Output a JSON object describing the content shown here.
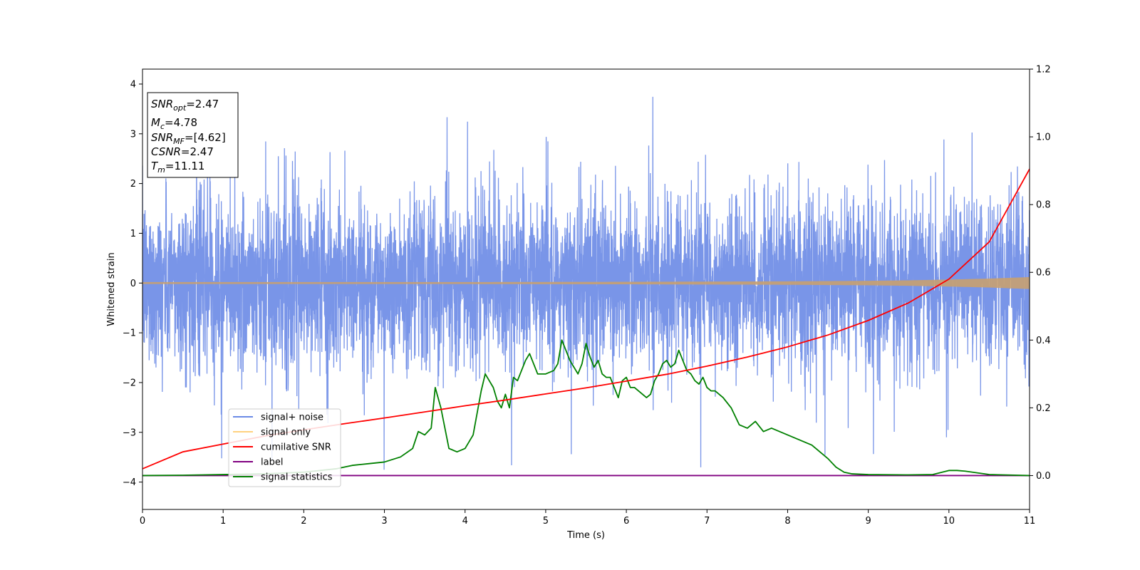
{
  "chart_data": {
    "type": "line",
    "xlabel": "Time (s)",
    "ylabel": "Whitened strain",
    "xlim": [
      0,
      11
    ],
    "ylim": [
      -4.55,
      4.3
    ],
    "y2lim": [
      -0.1,
      1.2
    ],
    "x_ticks": [
      "0",
      "1",
      "2",
      "3",
      "4",
      "5",
      "6",
      "7",
      "8",
      "9",
      "10",
      "11"
    ],
    "y_ticks": [
      "−4",
      "−3",
      "−2",
      "−1",
      "0",
      "1",
      "2",
      "3",
      "4"
    ],
    "y2_ticks": [
      "0.0",
      "0.2",
      "0.4",
      "0.6",
      "0.8",
      "1.0",
      "1.2"
    ],
    "legend": {
      "position": "lower-left",
      "entries": [
        {
          "label": "signal+ noise",
          "color": "#6a8ae6"
        },
        {
          "label": "signal only",
          "color": "#ffd27f"
        },
        {
          "label": "cumilative SNR",
          "color": "#ff0000"
        },
        {
          "label": "label",
          "color": "#800080"
        },
        {
          "label": "signal statistics",
          "color": "#008000"
        }
      ]
    },
    "stats_box": {
      "position": "upper-left",
      "snr_opt": {
        "sym": "SNR",
        "sub": "opt",
        "value": "=2.47"
      },
      "mc": {
        "sym": "M",
        "sub": "c",
        "value": "=4.78"
      },
      "snr_mf": {
        "sym": "SNR",
        "sub": "MF",
        "value": "=[4.62]"
      },
      "csnr": {
        "sym": "CSNR",
        "value": "=2.47"
      },
      "tm": {
        "sym": "T",
        "sub": "m",
        "value": "=11.11"
      }
    },
    "series": [
      {
        "name": "signal+ noise",
        "axis": "left",
        "color": "#6a8ae6",
        "style": "dense noise, approx. ±1.5 typical, spikes to ±4",
        "amplitude_typical": 1.5,
        "amplitude_max": 4.1
      },
      {
        "name": "signal only",
        "axis": "left",
        "color": "#c8a070",
        "style": "chirp envelope growing toward t=11",
        "envelope_x": [
          0,
          2,
          4,
          6,
          7,
          8,
          9,
          9.5,
          10,
          10.5,
          11
        ],
        "envelope_y": [
          0.02,
          0.02,
          0.02,
          0.025,
          0.03,
          0.035,
          0.045,
          0.055,
          0.07,
          0.09,
          0.12
        ]
      },
      {
        "name": "cumilative SNR",
        "axis": "right",
        "color": "#ff0000",
        "x": [
          0,
          0.5,
          1,
          1.5,
          2,
          2.5,
          3,
          3.5,
          4,
          4.5,
          5,
          5.5,
          6,
          6.5,
          7,
          7.5,
          8,
          8.5,
          9,
          9.5,
          10,
          10.5,
          11
        ],
        "y": [
          0.02,
          0.07,
          0.093,
          0.116,
          0.135,
          0.153,
          0.17,
          0.188,
          0.206,
          0.223,
          0.241,
          0.259,
          0.279,
          0.299,
          0.323,
          0.35,
          0.38,
          0.415,
          0.458,
          0.51,
          0.58,
          0.69,
          0.905
        ]
      },
      {
        "name": "label",
        "axis": "right",
        "color": "#800080",
        "x": [
          0,
          11
        ],
        "y": [
          0,
          0
        ]
      },
      {
        "name": "signal statistics",
        "axis": "right",
        "color": "#008000",
        "x": [
          0,
          0.5,
          1,
          1.5,
          2,
          2.4,
          2.6,
          2.8,
          3,
          3.2,
          3.35,
          3.42,
          3.5,
          3.58,
          3.63,
          3.7,
          3.8,
          3.9,
          4.0,
          4.1,
          4.2,
          4.25,
          4.3,
          4.35,
          4.4,
          4.45,
          4.5,
          4.55,
          4.6,
          4.65,
          4.7,
          4.75,
          4.8,
          4.85,
          4.9,
          5.0,
          5.1,
          5.15,
          5.2,
          5.25,
          5.3,
          5.35,
          5.4,
          5.45,
          5.5,
          5.55,
          5.6,
          5.65,
          5.7,
          5.75,
          5.8,
          5.85,
          5.9,
          5.95,
          6.0,
          6.05,
          6.1,
          6.15,
          6.2,
          6.25,
          6.3,
          6.35,
          6.4,
          6.45,
          6.5,
          6.55,
          6.6,
          6.65,
          6.7,
          6.75,
          6.8,
          6.85,
          6.9,
          6.95,
          7.0,
          7.05,
          7.1,
          7.15,
          7.2,
          7.3,
          7.4,
          7.5,
          7.6,
          7.7,
          7.8,
          7.9,
          8.0,
          8.1,
          8.2,
          8.3,
          8.4,
          8.5,
          8.6,
          8.7,
          8.8,
          9.0,
          9.5,
          9.8,
          10.0,
          10.1,
          10.2,
          10.5,
          11.0
        ],
        "y": [
          0.0,
          0.001,
          0.003,
          0.005,
          0.01,
          0.02,
          0.03,
          0.035,
          0.04,
          0.055,
          0.08,
          0.13,
          0.12,
          0.14,
          0.26,
          0.2,
          0.08,
          0.07,
          0.08,
          0.12,
          0.25,
          0.3,
          0.28,
          0.26,
          0.22,
          0.2,
          0.24,
          0.2,
          0.29,
          0.28,
          0.31,
          0.34,
          0.36,
          0.33,
          0.3,
          0.3,
          0.31,
          0.33,
          0.4,
          0.37,
          0.34,
          0.32,
          0.3,
          0.33,
          0.39,
          0.35,
          0.32,
          0.34,
          0.3,
          0.29,
          0.29,
          0.26,
          0.23,
          0.28,
          0.29,
          0.26,
          0.26,
          0.25,
          0.24,
          0.23,
          0.24,
          0.28,
          0.3,
          0.33,
          0.34,
          0.32,
          0.33,
          0.37,
          0.34,
          0.31,
          0.3,
          0.28,
          0.27,
          0.29,
          0.26,
          0.25,
          0.25,
          0.24,
          0.23,
          0.2,
          0.15,
          0.14,
          0.16,
          0.13,
          0.14,
          0.13,
          0.12,
          0.11,
          0.1,
          0.09,
          0.07,
          0.05,
          0.025,
          0.01,
          0.005,
          0.003,
          0.002,
          0.003,
          0.015,
          0.015,
          0.013,
          0.003,
          0.0
        ]
      }
    ]
  }
}
